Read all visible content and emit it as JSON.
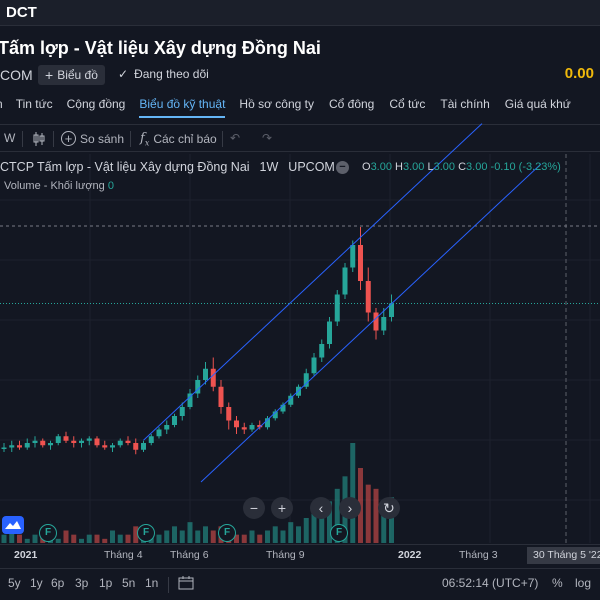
{
  "header": {
    "ticker": "DCT",
    "company_name": "Tấm lợp - Vật liệu Xây dựng Đồng Nai",
    "exchange": "COM",
    "chart_button": "Biểu đồ",
    "follow_label": "Đang theo dõi",
    "price": "0.00"
  },
  "tabs": [
    {
      "label": "n"
    },
    {
      "label": "Tin tức"
    },
    {
      "label": "Cộng đồng"
    },
    {
      "label": "Biểu đồ kỹ thuật",
      "active": true
    },
    {
      "label": "Hồ sơ công ty"
    },
    {
      "label": "Cổ đông"
    },
    {
      "label": "Cổ tức"
    },
    {
      "label": "Tài chính"
    },
    {
      "label": "Giá quá khứ"
    }
  ],
  "toolbar": {
    "interval": "W",
    "compare": "So sánh",
    "indicators": "Các chỉ báo"
  },
  "legend": {
    "title": "CTCP Tấm lợp - Vật liệu Xây dựng Đồng Nai",
    "interval": "1W",
    "exchange": "UPCOM",
    "o_label": "O",
    "o": "3.00",
    "h_label": "H",
    "h": "3.00",
    "l_label": "L",
    "l": "3.00",
    "c_label": "C",
    "c": "3.00",
    "change": "-0.10 (-3.23%)",
    "volume_label": "Volume - Khối lượng",
    "volume_value": "0"
  },
  "time_axis": {
    "labels": [
      "2021",
      "Tháng 4",
      "Tháng 6",
      "Tháng 9",
      "2022",
      "Tháng 3"
    ],
    "crosshair": "30 Tháng 5 '22"
  },
  "bottom": {
    "ranges": [
      "5y",
      "1y",
      "6p",
      "3p",
      "1p",
      "5n",
      "1n"
    ],
    "time": "06:52:14 (UTC+7)",
    "percent": "%",
    "log": "log"
  },
  "nav": {
    "zoom_out": "−",
    "zoom_in": "+",
    "prev": "‹",
    "next": "›",
    "reset": "↻"
  },
  "badge_letter": "F",
  "colors": {
    "up": "#26a69a",
    "down": "#ef5350",
    "channel": "#2962ff",
    "accent": "#64b5f6",
    "price": "#f0b90b"
  },
  "chart_data": {
    "type": "candlestick",
    "interval": "1W",
    "candles": [
      {
        "o": 3.0,
        "h": 3.02,
        "l": 2.98,
        "c": 3.0
      },
      {
        "o": 3.0,
        "h": 3.03,
        "l": 2.98,
        "c": 3.01
      },
      {
        "o": 3.01,
        "h": 3.03,
        "l": 2.99,
        "c": 3.0
      },
      {
        "o": 3.0,
        "h": 3.04,
        "l": 2.99,
        "c": 3.02
      },
      {
        "o": 3.02,
        "h": 3.05,
        "l": 3.0,
        "c": 3.03
      },
      {
        "o": 3.03,
        "h": 3.04,
        "l": 3.0,
        "c": 3.01
      },
      {
        "o": 3.01,
        "h": 3.03,
        "l": 2.99,
        "c": 3.02
      },
      {
        "o": 3.02,
        "h": 3.06,
        "l": 3.01,
        "c": 3.05
      },
      {
        "o": 3.05,
        "h": 3.07,
        "l": 3.02,
        "c": 3.03
      },
      {
        "o": 3.03,
        "h": 3.05,
        "l": 3.0,
        "c": 3.02
      },
      {
        "o": 3.02,
        "h": 3.04,
        "l": 3.0,
        "c": 3.03
      },
      {
        "o": 3.03,
        "h": 3.05,
        "l": 3.01,
        "c": 3.04
      },
      {
        "o": 3.04,
        "h": 3.05,
        "l": 3.0,
        "c": 3.01
      },
      {
        "o": 3.01,
        "h": 3.03,
        "l": 2.99,
        "c": 3.0
      },
      {
        "o": 3.0,
        "h": 3.02,
        "l": 2.98,
        "c": 3.01
      },
      {
        "o": 3.01,
        "h": 3.04,
        "l": 3.0,
        "c": 3.03
      },
      {
        "o": 3.03,
        "h": 3.05,
        "l": 3.01,
        "c": 3.02
      },
      {
        "o": 3.02,
        "h": 3.04,
        "l": 2.97,
        "c": 2.99
      },
      {
        "o": 2.99,
        "h": 3.03,
        "l": 2.98,
        "c": 3.02
      },
      {
        "o": 3.02,
        "h": 3.06,
        "l": 3.01,
        "c": 3.05
      },
      {
        "o": 3.05,
        "h": 3.09,
        "l": 3.04,
        "c": 3.08
      },
      {
        "o": 3.08,
        "h": 3.12,
        "l": 3.06,
        "c": 3.1
      },
      {
        "o": 3.1,
        "h": 3.15,
        "l": 3.09,
        "c": 3.14
      },
      {
        "o": 3.14,
        "h": 3.2,
        "l": 3.12,
        "c": 3.18
      },
      {
        "o": 3.18,
        "h": 3.26,
        "l": 3.17,
        "c": 3.24
      },
      {
        "o": 3.24,
        "h": 3.32,
        "l": 3.22,
        "c": 3.3
      },
      {
        "o": 3.3,
        "h": 3.38,
        "l": 3.28,
        "c": 3.35
      },
      {
        "o": 3.35,
        "h": 3.4,
        "l": 3.25,
        "c": 3.27
      },
      {
        "o": 3.27,
        "h": 3.3,
        "l": 3.15,
        "c": 3.18
      },
      {
        "o": 3.18,
        "h": 3.2,
        "l": 3.08,
        "c": 3.12
      },
      {
        "o": 3.12,
        "h": 3.14,
        "l": 3.06,
        "c": 3.09
      },
      {
        "o": 3.09,
        "h": 3.11,
        "l": 3.06,
        "c": 3.08
      },
      {
        "o": 3.08,
        "h": 3.11,
        "l": 3.07,
        "c": 3.1
      },
      {
        "o": 3.1,
        "h": 3.12,
        "l": 3.08,
        "c": 3.09
      },
      {
        "o": 3.09,
        "h": 3.14,
        "l": 3.08,
        "c": 3.13
      },
      {
        "o": 3.13,
        "h": 3.17,
        "l": 3.12,
        "c": 3.16
      },
      {
        "o": 3.16,
        "h": 3.2,
        "l": 3.15,
        "c": 3.19
      },
      {
        "o": 3.19,
        "h": 3.24,
        "l": 3.18,
        "c": 3.23
      },
      {
        "o": 3.23,
        "h": 3.28,
        "l": 3.22,
        "c": 3.27
      },
      {
        "o": 3.27,
        "h": 3.35,
        "l": 3.26,
        "c": 3.33
      },
      {
        "o": 3.33,
        "h": 3.42,
        "l": 3.32,
        "c": 3.4
      },
      {
        "o": 3.4,
        "h": 3.48,
        "l": 3.38,
        "c": 3.46
      },
      {
        "o": 3.46,
        "h": 3.58,
        "l": 3.44,
        "c": 3.56
      },
      {
        "o": 3.56,
        "h": 3.7,
        "l": 3.54,
        "c": 3.68
      },
      {
        "o": 3.68,
        "h": 3.82,
        "l": 3.66,
        "c": 3.8
      },
      {
        "o": 3.8,
        "h": 3.92,
        "l": 3.78,
        "c": 3.9
      },
      {
        "o": 3.9,
        "h": 3.98,
        "l": 3.7,
        "c": 3.74
      },
      {
        "o": 3.74,
        "h": 3.8,
        "l": 3.56,
        "c": 3.6
      },
      {
        "o": 3.6,
        "h": 3.62,
        "l": 3.48,
        "c": 3.52
      },
      {
        "o": 3.52,
        "h": 3.62,
        "l": 3.5,
        "c": 3.58
      },
      {
        "o": 3.58,
        "h": 3.68,
        "l": 3.56,
        "c": 3.64
      }
    ],
    "volumes": [
      2,
      3,
      2,
      1,
      2,
      3,
      2,
      1,
      3,
      2,
      1,
      2,
      2,
      1,
      3,
      2,
      2,
      4,
      2,
      3,
      2,
      3,
      4,
      3,
      5,
      3,
      4,
      3,
      4,
      3,
      2,
      2,
      3,
      2,
      3,
      4,
      3,
      5,
      4,
      6,
      8,
      7,
      10,
      13,
      16,
      24,
      18,
      14,
      13,
      9,
      11
    ],
    "reference_price": 3.64
  }
}
